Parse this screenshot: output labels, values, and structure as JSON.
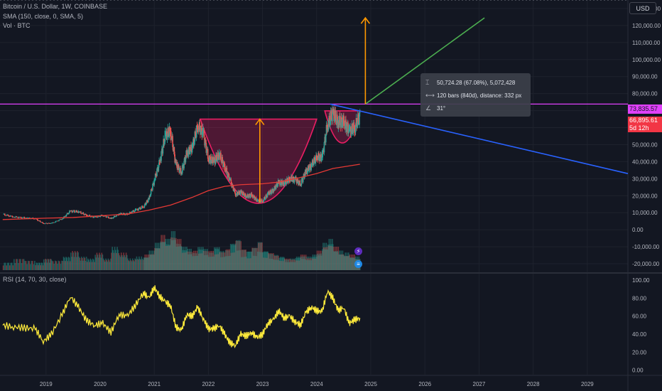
{
  "header": {
    "symbol_line": "Bitcoin / U.S. Dollar, 1W, COINBASE",
    "sma_line": "SMA (150, close, 0, SMA, 5)",
    "vol_line": "Vol · BTC",
    "currency_button": "USD"
  },
  "price_tags": {
    "current_level": "73,835.57",
    "last_price": "66,895.61",
    "countdown": "5d 12h"
  },
  "measure_tooltip": {
    "price_change": "50,724.28 (67.08%), 5,072,428",
    "bars_distance": "120 bars (840d), distance: 332 px",
    "angle": "31°"
  },
  "rsi": {
    "legend": "RSI (14, 70, 30, close)",
    "upper_band": 70,
    "lower_band": 30,
    "mid_line": 50
  },
  "colors": {
    "background": "#131722",
    "candle_up": "#26a69a",
    "candle_down": "#ef5350",
    "sma": "#e53935",
    "cup_fill": "#e91e63",
    "arrow": "#ff9800",
    "projection_up": "#4caf50",
    "projection_down": "#2962ff",
    "horizontal_level": "#e040fb",
    "rsi_line": "#ffeb3b"
  },
  "icons": {
    "event_1": "lightning-icon",
    "event_2": "us-flag-icon",
    "measure": "measure-icon",
    "range": "range-icon",
    "angle": "angle-icon"
  },
  "chart_data": [
    {
      "type": "line",
      "panel": "price",
      "ylim": [
        -25000,
        135000
      ],
      "y_ticks": [
        130000,
        120000,
        110000,
        100000,
        90000,
        80000,
        70000,
        60000,
        50000,
        40000,
        30000,
        20000,
        10000,
        0,
        -10000,
        -20000
      ],
      "y_tick_labels": [
        "130,000.00",
        "120,000.00",
        "110,000.00",
        "100,000.00",
        "90,000.00",
        "80,000.00",
        "70,000.00",
        "60,000.00",
        "50,000.00",
        "40,000.00",
        "30,000.00",
        "20,000.00",
        "10,000.00",
        "0.00",
        "-10,000.00",
        "-20,000.00"
      ],
      "x_ticks": [
        "2019",
        "2020",
        "2021",
        "2022",
        "2023",
        "2024",
        "2025",
        "2026",
        "2027",
        "2028",
        "2029"
      ],
      "x_tick_years": [
        2019,
        2020,
        2021,
        2022,
        2023,
        2024,
        2025,
        2026,
        2027,
        2028,
        2029
      ],
      "x_range_years": [
        2018.15,
        2029.75
      ],
      "series": [
        {
          "kind": "price",
          "x": [
            2018.2,
            2018.4,
            2018.6,
            2018.8,
            2018.95,
            2019.1,
            2019.3,
            2019.45,
            2019.6,
            2019.75,
            2019.9,
            2020.05,
            2020.2,
            2020.35,
            2020.5,
            2020.65,
            2020.8,
            2020.9,
            2021.0,
            2021.1,
            2021.2,
            2021.3,
            2021.4,
            2021.5,
            2021.6,
            2021.7,
            2021.8,
            2021.9,
            2022.0,
            2022.1,
            2022.2,
            2022.3,
            2022.4,
            2022.5,
            2022.6,
            2022.7,
            2022.8,
            2022.9,
            2023.0,
            2023.1,
            2023.2,
            2023.3,
            2023.4,
            2023.5,
            2023.6,
            2023.7,
            2023.8,
            2023.9,
            2024.0,
            2024.1,
            2024.2,
            2024.3,
            2024.4,
            2024.5,
            2024.6,
            2024.7,
            2024.8
          ],
          "values": [
            9000,
            7500,
            7000,
            6500,
            3700,
            3800,
            6500,
            11000,
            10500,
            8500,
            7300,
            8500,
            6500,
            9300,
            9200,
            11500,
            13500,
            18000,
            29000,
            40000,
            55000,
            58000,
            38000,
            34000,
            45000,
            48000,
            61000,
            57000,
            42000,
            40000,
            44000,
            37000,
            29000,
            21000,
            22000,
            19500,
            20500,
            17000,
            16800,
            21000,
            23500,
            28000,
            27000,
            30000,
            29500,
            27000,
            34000,
            37500,
            43000,
            42500,
            62000,
            68000,
            63000,
            64000,
            58000,
            60000,
            66895
          ]
        },
        {
          "kind": "sma150",
          "x": [
            2018.2,
            2019.0,
            2019.5,
            2020.0,
            2020.5,
            2020.9,
            2021.3,
            2021.7,
            2022.0,
            2022.3,
            2022.6,
            2023.0,
            2023.3,
            2023.6,
            2024.0,
            2024.3,
            2024.8
          ],
          "values": [
            6000,
            6800,
            7200,
            8200,
            9200,
            11500,
            14500,
            19000,
            23000,
            25500,
            26500,
            27000,
            28000,
            30000,
            33000,
            36000,
            38500
          ]
        }
      ],
      "annotations": {
        "horizontal_level": 73835.57,
        "cup_top": 65000,
        "cup_bottom": 16000,
        "cup_x_range": [
          2021.85,
          2024.0
        ],
        "handle_x_range": [
          2024.15,
          2024.8
        ],
        "handle_bottom": 51000,
        "arrow_left": {
          "x": 2022.95,
          "from": 16000,
          "to": 65000
        },
        "arrow_right": {
          "x": 2024.9,
          "from": 73835,
          "to": 124500
        },
        "projection_up": {
          "x1": 2024.9,
          "y1": 73835,
          "x2": 2027.1,
          "y2": 124500
        },
        "projection_down": {
          "x1": 2024.25,
          "y1": 73835,
          "x2": 2029.75,
          "y2": 33000
        }
      }
    },
    {
      "type": "line",
      "panel": "volume",
      "note_series": "Vol · BTC",
      "values_relative": [
        0.2,
        0.3,
        0.25,
        0.2,
        0.3,
        0.25,
        0.35,
        0.5,
        0.35,
        0.3,
        0.45,
        0.3,
        0.6,
        0.45,
        0.3,
        0.35,
        0.4,
        0.5,
        0.7,
        0.9,
        0.8,
        1.0,
        0.8,
        0.6,
        0.55,
        0.5,
        0.6,
        0.55,
        0.5,
        0.6,
        0.5,
        0.55,
        0.7,
        0.8,
        0.55,
        0.5,
        0.6,
        0.75,
        0.5,
        0.45,
        0.4,
        0.35,
        0.3,
        0.3,
        0.35,
        0.4,
        0.35,
        0.4,
        0.5,
        0.7,
        0.8,
        0.6,
        0.5,
        0.45,
        0.4,
        0.35,
        0.35
      ]
    },
    {
      "type": "line",
      "panel": "rsi",
      "ylim": [
        -5,
        108
      ],
      "y_ticks": [
        100,
        80,
        60,
        40,
        20,
        0
      ],
      "y_tick_labels": [
        "100.00",
        "80.00",
        "60.00",
        "40.00",
        "20.00",
        "0.00"
      ],
      "series": [
        {
          "kind": "rsi",
          "x": [
            2018.2,
            2018.4,
            2018.6,
            2018.8,
            2018.95,
            2019.1,
            2019.3,
            2019.45,
            2019.6,
            2019.75,
            2019.9,
            2020.05,
            2020.2,
            2020.35,
            2020.5,
            2020.65,
            2020.8,
            2020.9,
            2021.0,
            2021.1,
            2021.2,
            2021.3,
            2021.4,
            2021.5,
            2021.6,
            2021.7,
            2021.8,
            2021.9,
            2022.0,
            2022.1,
            2022.2,
            2022.3,
            2022.4,
            2022.5,
            2022.6,
            2022.7,
            2022.8,
            2022.9,
            2023.0,
            2023.1,
            2023.2,
            2023.3,
            2023.4,
            2023.5,
            2023.6,
            2023.7,
            2023.8,
            2023.9,
            2024.0,
            2024.1,
            2024.2,
            2024.3,
            2024.4,
            2024.5,
            2024.6,
            2024.7,
            2024.8
          ],
          "values": [
            50,
            48,
            47,
            46,
            32,
            40,
            62,
            82,
            70,
            55,
            50,
            52,
            42,
            62,
            60,
            72,
            86,
            80,
            92,
            82,
            76,
            72,
            48,
            44,
            62,
            60,
            70,
            58,
            46,
            46,
            50,
            40,
            30,
            28,
            40,
            38,
            42,
            36,
            40,
            52,
            56,
            66,
            58,
            60,
            54,
            50,
            64,
            70,
            66,
            65,
            88,
            80,
            66,
            70,
            52,
            56,
            58
          ]
        }
      ]
    }
  ]
}
